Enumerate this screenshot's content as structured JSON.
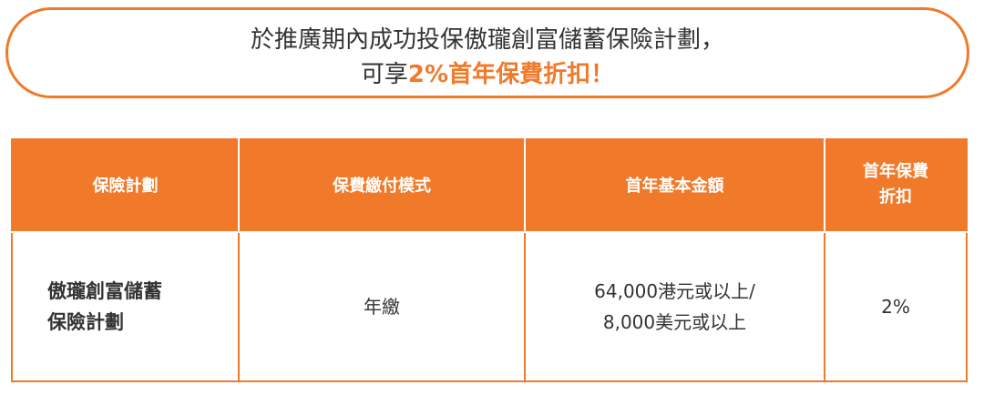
{
  "banner": {
    "line1": "於推廣期內成功投保傲瓏創富儲蓄保險計劃，",
    "line2_prefix": "可享",
    "line2_highlight": "2%首年保費折扣！"
  },
  "table": {
    "headers": [
      "保險計劃",
      "保費繳付模式",
      "首年基本金額",
      "首年保費\n折扣"
    ],
    "row": {
      "plan_line1": "傲瓏創富儲蓄",
      "plan_line2": "保險計劃",
      "mode": "年繳",
      "amount_line1": "64,000港元或以上/",
      "amount_line2": "8,000美元或以上",
      "discount": "2%"
    }
  },
  "colors": {
    "accent": "#f07a2a"
  }
}
